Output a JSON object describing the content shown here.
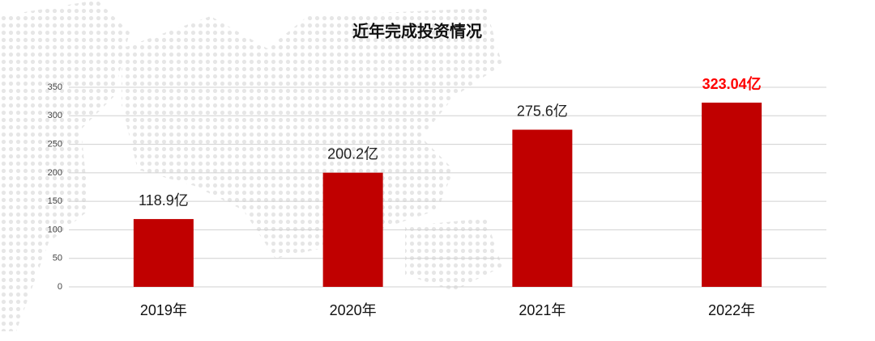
{
  "chart_data": {
    "type": "bar",
    "title": "近年完成投资情况",
    "categories": [
      "2019年",
      "2020年",
      "2021年",
      "2022年"
    ],
    "values": [
      118.9,
      200.2,
      275.6,
      323.04
    ],
    "value_labels": [
      "118.9亿",
      "200.2亿",
      "275.6亿",
      "323.04亿"
    ],
    "value_label_colors": [
      "#222222",
      "#222222",
      "#222222",
      "#ff0000"
    ],
    "value_label_bold": [
      false,
      false,
      false,
      true
    ],
    "color": "#c00000",
    "ylim": [
      0,
      350
    ],
    "yticks": [
      0,
      50,
      100,
      150,
      200,
      250,
      300,
      350
    ],
    "grid": true
  }
}
